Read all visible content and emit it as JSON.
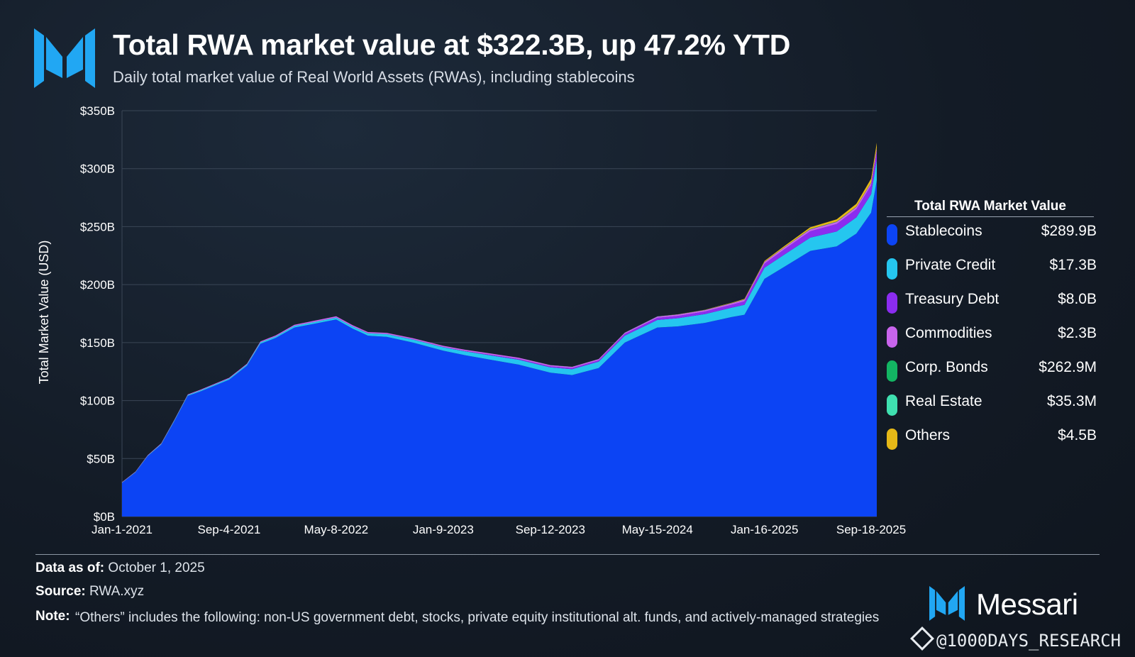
{
  "header": {
    "title": "Total RWA market value at $322.3B, up 47.2% YTD",
    "subtitle": "Daily total market value of Real World Assets (RWAs), including stablecoins"
  },
  "chart_data": {
    "type": "area",
    "stacked": true,
    "title": "Total RWA market value at $322.3B, up 47.2% YTD",
    "subtitle": "Daily total market value of Real World Assets (RWAs), including stablecoins",
    "xlabel": "",
    "ylabel": "Total Market Value (USD)",
    "ylim": [
      0,
      350
    ],
    "yticks": [
      "$0B",
      "$50B",
      "$100B",
      "$150B",
      "$200B",
      "$250B",
      "$300B",
      "$350B"
    ],
    "xticks": [
      "Jan-1-2021",
      "Sep-4-2021",
      "May-8-2022",
      "Jan-9-2023",
      "Sep-12-2023",
      "May-15-2024",
      "Jan-16-2025",
      "Sep-18-2025"
    ],
    "grid": "horizontal",
    "legend_position": "right",
    "x": [
      "Jan-1-2021",
      "Feb-1-2021",
      "Mar-1-2021",
      "Apr-1-2021",
      "May-1-2021",
      "Jun-1-2021",
      "Jul-1-2021",
      "Sep-4-2021",
      "Oct-15-2021",
      "Nov-15-2021",
      "Dec-20-2021",
      "Feb-1-2022",
      "Mar-15-2022",
      "May-8-2022",
      "Jun-15-2022",
      "Jul-20-2022",
      "Sep-1-2022",
      "Nov-1-2022",
      "Jan-9-2023",
      "Mar-1-2023",
      "May-1-2023",
      "Jul-1-2023",
      "Sep-12-2023",
      "Nov-1-2023",
      "Jan-1-2024",
      "Mar-1-2024",
      "May-15-2024",
      "Jul-1-2024",
      "Sep-1-2024",
      "Nov-1-2024",
      "Dec-1-2024",
      "Jan-16-2025",
      "Mar-1-2025",
      "May-1-2025",
      "Jul-1-2025",
      "Aug-15-2025",
      "Sep-18-2025",
      "Oct-1-2025"
    ],
    "series": [
      {
        "name": "Stablecoins",
        "values": [
          29,
          38,
          52,
          62,
          82,
          104,
          108,
          118,
          130,
          149,
          154,
          163,
          166,
          170,
          162,
          156,
          155,
          150,
          143,
          139,
          135,
          131,
          124,
          122,
          128,
          150,
          163,
          164,
          167,
          172,
          174,
          205,
          215,
          229,
          233,
          244,
          262,
          290
        ]
      },
      {
        "name": "Private Credit",
        "values": [
          0.3,
          0.4,
          0.5,
          0.6,
          0.7,
          0.8,
          0.9,
          1,
          1.1,
          1.2,
          1.3,
          1.4,
          1.5,
          1.6,
          1.8,
          2,
          2.3,
          2.6,
          3,
          3.4,
          3.8,
          4.2,
          4.6,
          5,
          5.5,
          6,
          6.5,
          7,
          7.5,
          8,
          8.6,
          9.5,
          10.5,
          11.5,
          12.8,
          14,
          16,
          17.3
        ]
      },
      {
        "name": "Treasury Debt",
        "values": [
          0,
          0,
          0,
          0,
          0,
          0,
          0,
          0,
          0,
          0,
          0,
          0,
          0,
          0.05,
          0.08,
          0.1,
          0.12,
          0.15,
          0.2,
          0.3,
          0.5,
          0.7,
          0.9,
          1,
          1.2,
          1.4,
          1.8,
          2,
          2.3,
          2.6,
          3,
          3.5,
          4.5,
          5.5,
          6.5,
          7,
          7.5,
          8
        ]
      },
      {
        "name": "Commodities",
        "values": [
          0.4,
          0.4,
          0.4,
          0.5,
          0.5,
          0.5,
          0.6,
          0.6,
          0.7,
          0.8,
          0.9,
          1,
          1.1,
          1.1,
          1.1,
          1,
          1,
          1,
          1,
          1.1,
          1.1,
          1.1,
          1.1,
          1.1,
          1.1,
          1.1,
          1.2,
          1.2,
          1.2,
          1.3,
          1.4,
          1.5,
          1.6,
          1.7,
          1.8,
          1.9,
          2.1,
          2.3
        ]
      },
      {
        "name": "Corp. Bonds",
        "values": [
          0,
          0,
          0,
          0,
          0,
          0,
          0,
          0,
          0,
          0,
          0,
          0,
          0,
          0,
          0,
          0,
          0,
          0,
          0,
          0,
          0.01,
          0.02,
          0.03,
          0.04,
          0.05,
          0.06,
          0.07,
          0.08,
          0.1,
          0.12,
          0.14,
          0.16,
          0.18,
          0.2,
          0.22,
          0.24,
          0.25,
          0.26
        ]
      },
      {
        "name": "Real Estate",
        "values": [
          0,
          0,
          0,
          0,
          0,
          0,
          0,
          0,
          0,
          0,
          0,
          0,
          0,
          0,
          0,
          0,
          0,
          0,
          0,
          0,
          0,
          0,
          0.01,
          0.01,
          0.01,
          0.02,
          0.02,
          0.02,
          0.02,
          0.03,
          0.03,
          0.03,
          0.03,
          0.03,
          0.03,
          0.03,
          0.035,
          0.035
        ]
      },
      {
        "name": "Others",
        "values": [
          0,
          0,
          0,
          0,
          0,
          0,
          0,
          0,
          0,
          0,
          0,
          0,
          0,
          0,
          0,
          0,
          0,
          0,
          0,
          0,
          0,
          0,
          0,
          0,
          0,
          0,
          0,
          0.1,
          0.2,
          0.3,
          0.5,
          0.7,
          1,
          1.5,
          2,
          2.5,
          3.5,
          4.5
        ]
      }
    ]
  },
  "legend": {
    "title": "Total RWA Market Value",
    "items": [
      {
        "name": "Stablecoins",
        "value": "$289.9B",
        "color": "#0c44f4"
      },
      {
        "name": "Private Credit",
        "value": "$17.3B",
        "color": "#25c6ef"
      },
      {
        "name": "Treasury Debt",
        "value": "$8.0B",
        "color": "#8b2cf0"
      },
      {
        "name": "Commodities",
        "value": "$2.3B",
        "color": "#c864ec"
      },
      {
        "name": "Corp. Bonds",
        "value": "$262.9M",
        "color": "#13b563"
      },
      {
        "name": "Real Estate",
        "value": "$35.3M",
        "color": "#3fe0b0"
      },
      {
        "name": "Others",
        "value": "$4.5B",
        "color": "#e5b817"
      }
    ]
  },
  "footer": {
    "data_as_of_label": "Data as of:",
    "data_as_of": "October 1, 2025",
    "source_label": "Source:",
    "source": "RWA.xyz",
    "note_label": "Note:",
    "note": "“Others” includes the following: non-US government debt, stocks, private equity institutional alt. funds, and actively-managed strategies"
  },
  "brand": {
    "name": "Messari",
    "accent": "#23a8f2"
  },
  "watermark": "@1000DAYS_RESEARCH"
}
